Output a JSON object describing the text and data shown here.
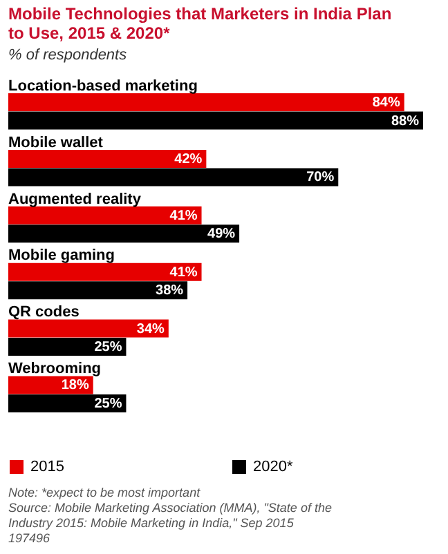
{
  "chart_data": {
    "type": "bar",
    "orientation": "horizontal",
    "title": "Mobile Technologies that Marketers in India Plan to Use, 2015 & 2020*",
    "subtitle": "% of respondents",
    "categories": [
      "Location-based marketing",
      "Mobile wallet",
      "Augmented reality",
      "Mobile gaming",
      "QR codes",
      "Webrooming"
    ],
    "series": [
      {
        "name": "2015",
        "color": "#e60000",
        "values": [
          84,
          42,
          41,
          41,
          34,
          18
        ],
        "value_labels": [
          "84%",
          "42%",
          "41%",
          "41%",
          "34%",
          "18%"
        ]
      },
      {
        "name": "2020*",
        "color": "#000000",
        "values": [
          88,
          70,
          49,
          38,
          25,
          25
        ],
        "value_labels": [
          "88%",
          "70%",
          "49%",
          "38%",
          "25%",
          "25%"
        ]
      }
    ],
    "legend": "bottom",
    "annotations": [
      "Note: *expect to be most important",
      "Source: Mobile Marketing Association (MMA), \"State of the Industry 2015: Mobile Marketing in India,\" Sep 2015",
      "197496"
    ]
  }
}
